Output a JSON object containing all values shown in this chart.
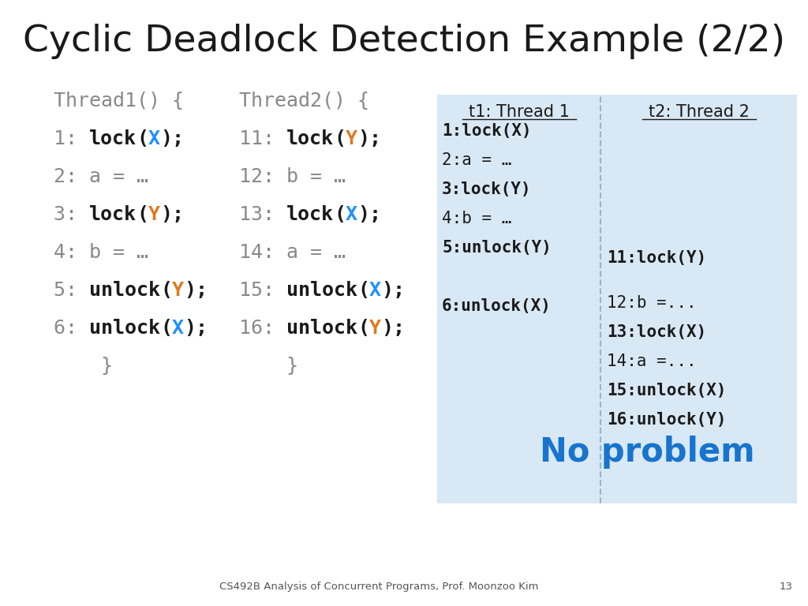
{
  "title": "Cyclic Deadlock Detection Example (2/2)",
  "title_fontsize": 34,
  "bg_color": "#ffffff",
  "blue_color": "#1e90ff",
  "orange_color": "#e07820",
  "black_color": "#1a1a1a",
  "gray_color": "#888888",
  "table_bg": "#d8e8f4",
  "no_problem_color": "#1874cd",
  "footer_text": "CS492B Analysis of Concurrent Programs, Prof. Moonzoo Kim",
  "page_num": "13",
  "code_fontsize": 18,
  "table_fontsize": 15
}
